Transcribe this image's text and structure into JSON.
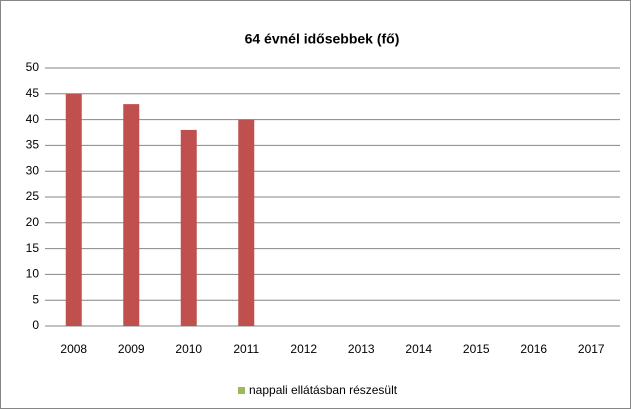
{
  "chart_data": {
    "type": "bar",
    "title": "64 évnél idősebbek (fő)",
    "categories": [
      "2008",
      "2009",
      "2010",
      "2011",
      "2012",
      "2013",
      "2014",
      "2015",
      "2016",
      "2017"
    ],
    "series": [
      {
        "name": "nappali ellátásban részesült",
        "color": "#c0504d",
        "legend_color": "#9bbb59",
        "values": [
          45,
          43,
          38,
          40,
          null,
          null,
          null,
          null,
          null,
          null
        ]
      }
    ],
    "ylim": [
      0,
      50
    ],
    "yticks": [
      0,
      5,
      10,
      15,
      20,
      25,
      30,
      35,
      40,
      45,
      50
    ],
    "grid": true,
    "legend": "bottom"
  }
}
